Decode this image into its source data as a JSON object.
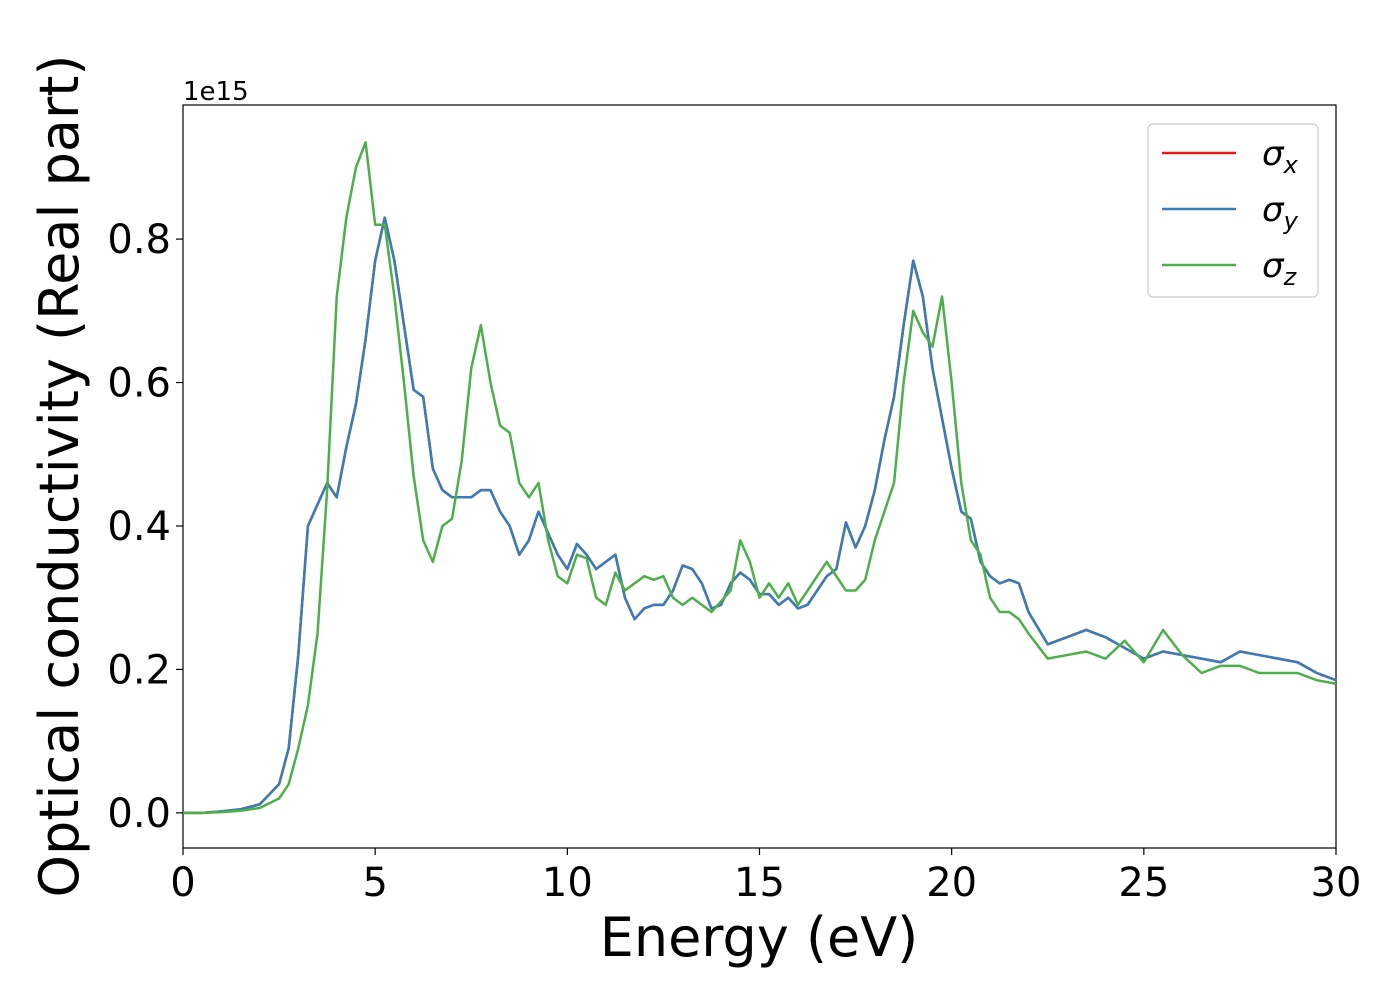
{
  "chart_data": {
    "type": "line",
    "x_label": "Energy (eV)",
    "y_label": "Optical conductivity (Real part)",
    "y_offset_label": "1e15",
    "xlim": [
      0,
      30
    ],
    "ylim": [
      -0.049,
      0.987
    ],
    "xticks": [
      0,
      5,
      10,
      15,
      20,
      25,
      30
    ],
    "yticks": [
      {
        "value": 0,
        "label": "0.0"
      },
      {
        "value": 0.2,
        "label": "0.2"
      },
      {
        "value": 0.4,
        "label": "0.4"
      },
      {
        "value": 0.6,
        "label": "0.6"
      },
      {
        "value": 0.8,
        "label": "0.8"
      }
    ],
    "grid": false,
    "legend": "upper right",
    "x": [
      0,
      0.5,
      1,
      1.5,
      2,
      2.5,
      2.75,
      3,
      3.25,
      3.5,
      3.75,
      4,
      4.25,
      4.5,
      4.75,
      5,
      5.25,
      5.5,
      5.75,
      6,
      6.25,
      6.5,
      6.75,
      7,
      7.25,
      7.5,
      7.75,
      8,
      8.25,
      8.5,
      8.75,
      9,
      9.25,
      9.5,
      9.75,
      10,
      10.25,
      10.5,
      10.75,
      11,
      11.25,
      11.5,
      11.75,
      12,
      12.25,
      12.5,
      12.75,
      13,
      13.25,
      13.5,
      13.75,
      14,
      14.25,
      14.5,
      14.75,
      15,
      15.25,
      15.5,
      15.75,
      16,
      16.25,
      16.5,
      16.75,
      17,
      17.25,
      17.5,
      17.75,
      18,
      18.25,
      18.5,
      18.75,
      19,
      19.25,
      19.5,
      19.75,
      20,
      20.25,
      20.5,
      20.75,
      21,
      21.25,
      21.5,
      21.75,
      22,
      22.5,
      23,
      23.5,
      24,
      24.5,
      25,
      25.5,
      26,
      26.5,
      27,
      27.5,
      28,
      28.5,
      29,
      29.5,
      30
    ],
    "series": [
      {
        "name": "σx",
        "color": "#e41a1c",
        "values": [
          0,
          0,
          0.002,
          0.005,
          0.012,
          0.04,
          0.09,
          0.22,
          0.4,
          0.43,
          0.46,
          0.44,
          0.51,
          0.57,
          0.66,
          0.77,
          0.83,
          0.77,
          0.68,
          0.59,
          0.58,
          0.48,
          0.45,
          0.44,
          0.44,
          0.44,
          0.45,
          0.45,
          0.42,
          0.4,
          0.36,
          0.38,
          0.42,
          0.39,
          0.36,
          0.34,
          0.375,
          0.36,
          0.34,
          0.35,
          0.36,
          0.3,
          0.27,
          0.285,
          0.29,
          0.29,
          0.31,
          0.345,
          0.34,
          0.32,
          0.285,
          0.29,
          0.32,
          0.335,
          0.325,
          0.305,
          0.305,
          0.29,
          0.3,
          0.285,
          0.29,
          0.31,
          0.33,
          0.34,
          0.405,
          0.37,
          0.4,
          0.45,
          0.52,
          0.58,
          0.68,
          0.77,
          0.72,
          0.62,
          0.55,
          0.48,
          0.42,
          0.41,
          0.35,
          0.33,
          0.32,
          0.325,
          0.32,
          0.28,
          0.235,
          0.245,
          0.255,
          0.245,
          0.23,
          0.215,
          0.225,
          0.22,
          0.215,
          0.21,
          0.225,
          0.22,
          0.215,
          0.21,
          0.195,
          0.185
        ]
      },
      {
        "name": "σy",
        "color": "#377eb8",
        "values": [
          0,
          0,
          0.002,
          0.005,
          0.012,
          0.04,
          0.09,
          0.22,
          0.4,
          0.43,
          0.46,
          0.44,
          0.51,
          0.57,
          0.66,
          0.77,
          0.83,
          0.77,
          0.68,
          0.59,
          0.58,
          0.48,
          0.45,
          0.44,
          0.44,
          0.44,
          0.45,
          0.45,
          0.42,
          0.4,
          0.36,
          0.38,
          0.42,
          0.39,
          0.36,
          0.34,
          0.375,
          0.36,
          0.34,
          0.35,
          0.36,
          0.3,
          0.27,
          0.285,
          0.29,
          0.29,
          0.31,
          0.345,
          0.34,
          0.32,
          0.285,
          0.29,
          0.32,
          0.335,
          0.325,
          0.305,
          0.305,
          0.29,
          0.3,
          0.285,
          0.29,
          0.31,
          0.33,
          0.34,
          0.405,
          0.37,
          0.4,
          0.45,
          0.52,
          0.58,
          0.68,
          0.77,
          0.72,
          0.62,
          0.55,
          0.48,
          0.42,
          0.41,
          0.35,
          0.33,
          0.32,
          0.325,
          0.32,
          0.28,
          0.235,
          0.245,
          0.255,
          0.245,
          0.23,
          0.215,
          0.225,
          0.22,
          0.215,
          0.21,
          0.225,
          0.22,
          0.215,
          0.21,
          0.195,
          0.185
        ]
      },
      {
        "name": "σz",
        "color": "#4daf4a",
        "values": [
          0,
          0,
          0.001,
          0.003,
          0.007,
          0.02,
          0.04,
          0.09,
          0.15,
          0.25,
          0.45,
          0.72,
          0.83,
          0.9,
          0.935,
          0.82,
          0.82,
          0.72,
          0.6,
          0.47,
          0.38,
          0.35,
          0.4,
          0.41,
          0.49,
          0.62,
          0.68,
          0.6,
          0.54,
          0.53,
          0.46,
          0.44,
          0.46,
          0.38,
          0.33,
          0.32,
          0.36,
          0.355,
          0.3,
          0.29,
          0.335,
          0.31,
          0.32,
          0.33,
          0.325,
          0.33,
          0.3,
          0.29,
          0.3,
          0.29,
          0.28,
          0.295,
          0.31,
          0.38,
          0.35,
          0.3,
          0.32,
          0.3,
          0.32,
          0.29,
          0.31,
          0.33,
          0.35,
          0.33,
          0.31,
          0.31,
          0.325,
          0.38,
          0.42,
          0.46,
          0.6,
          0.7,
          0.67,
          0.65,
          0.72,
          0.6,
          0.46,
          0.38,
          0.36,
          0.3,
          0.28,
          0.28,
          0.27,
          0.25,
          0.215,
          0.22,
          0.225,
          0.215,
          0.24,
          0.21,
          0.255,
          0.22,
          0.195,
          0.205,
          0.205,
          0.195,
          0.195,
          0.195,
          0.185,
          0.18
        ]
      }
    ]
  }
}
